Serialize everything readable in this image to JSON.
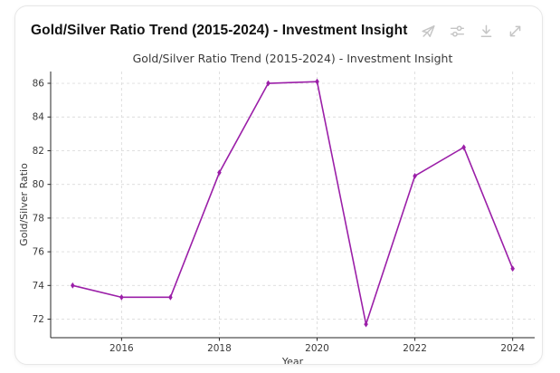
{
  "header": {
    "title": "Gold/Silver Ratio Trend (2015-2024) - Investment Insight",
    "icons": [
      {
        "name": "send-off-icon"
      },
      {
        "name": "sliders-icon"
      },
      {
        "name": "download-icon"
      },
      {
        "name": "expand-icon"
      }
    ]
  },
  "chart_data": {
    "type": "line",
    "title": "Gold/Silver Ratio Trend (2015-2024) - Investment Insight",
    "xlabel": "Year",
    "ylabel": "Gold/Silver Ratio",
    "series": [
      {
        "name": "Gold/Silver Ratio",
        "x": [
          2015,
          2016,
          2017,
          2018,
          2019,
          2020,
          2021,
          2022,
          2023,
          2024
        ],
        "values": [
          74.0,
          73.3,
          73.3,
          80.7,
          86.0,
          86.1,
          71.7,
          80.5,
          82.2,
          75.0
        ],
        "color": "#9b1fa8",
        "marker": "diamond"
      }
    ],
    "xticks": [
      2016,
      2018,
      2020,
      2022,
      2024
    ],
    "yticks": [
      72,
      74,
      76,
      78,
      80,
      82,
      84,
      86
    ],
    "xlim": [
      2014.55,
      2024.45
    ],
    "ylim": [
      70.9,
      86.7
    ],
    "grid": true,
    "grid_style": "dashed",
    "grid_color": "#dcdcdc",
    "spine_color": "#262626",
    "text_color": "#3a3a3a",
    "legend": false
  }
}
